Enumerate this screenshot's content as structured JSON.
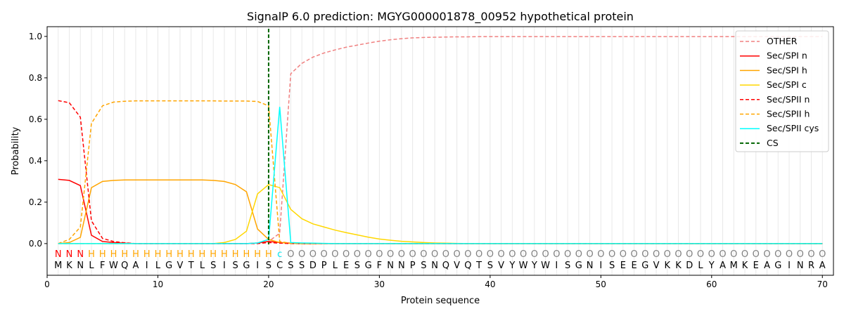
{
  "chart_data": {
    "type": "line",
    "title": "SignalP 6.0 prediction: MGYG000001878_00952 hypothetical protein",
    "xlabel": "Protein sequence",
    "ylabel": "Probability",
    "xlim": [
      0,
      71
    ],
    "ylim": [
      -0.153,
      1.047
    ],
    "xticks": [
      0,
      10,
      20,
      30,
      40,
      50,
      60,
      70
    ],
    "yticks": [
      0.0,
      0.2,
      0.4,
      0.6,
      0.8,
      1.0
    ],
    "grid": "vertical at each residue",
    "legend_position": "top-right",
    "sequence": [
      "M",
      "K",
      "N",
      "L",
      "F",
      "W",
      "Q",
      "A",
      "I",
      "L",
      "G",
      "V",
      "T",
      "L",
      "S",
      "I",
      "S",
      "G",
      "I",
      "S",
      "C",
      "S",
      "S",
      "D",
      "P",
      "L",
      "E",
      "S",
      "G",
      "F",
      "N",
      "N",
      "P",
      "S",
      "N",
      "Q",
      "V",
      "Q",
      "T",
      "S",
      "V",
      "Y",
      "W",
      "Y",
      "W",
      "I",
      "S",
      "G",
      "N",
      "I",
      "S",
      "E",
      "E",
      "G",
      "V",
      "K",
      "K",
      "D",
      "L",
      "Y",
      "A",
      "M",
      "K",
      "E",
      "A",
      "G",
      "I",
      "N",
      "R",
      "A"
    ],
    "labels": [
      "N",
      "N",
      "N",
      "H",
      "H",
      "H",
      "H",
      "H",
      "H",
      "H",
      "H",
      "H",
      "H",
      "H",
      "H",
      "H",
      "H",
      "H",
      "H",
      "H",
      "c",
      "O",
      "O",
      "O",
      "O",
      "O",
      "O",
      "O",
      "O",
      "O",
      "O",
      "O",
      "O",
      "O",
      "O",
      "O",
      "O",
      "O",
      "O",
      "O",
      "O",
      "O",
      "O",
      "O",
      "O",
      "O",
      "O",
      "O",
      "O",
      "O",
      "O",
      "O",
      "O",
      "O",
      "O",
      "O",
      "O",
      "O",
      "O",
      "O",
      "O",
      "O",
      "O",
      "O",
      "O",
      "O",
      "O",
      "O",
      "O",
      "O"
    ],
    "label_colors": {
      "N": "#ff0000",
      "H": "#ffa500",
      "c": "#00e5ee",
      "O": "#808080"
    },
    "cleavage_site": {
      "name": "CS",
      "x": 20,
      "color": "#006400"
    },
    "series": [
      {
        "name": "OTHER",
        "color": "#f08080",
        "dash": true,
        "values": [
          0,
          0,
          0,
          0,
          0,
          0,
          0,
          0,
          0,
          0,
          0,
          0,
          0,
          0,
          0,
          0,
          0,
          0,
          0.002,
          0.01,
          0.05,
          0.82,
          0.87,
          0.9,
          0.92,
          0.935,
          0.948,
          0.958,
          0.968,
          0.977,
          0.984,
          0.989,
          0.993,
          0.995,
          0.996,
          0.997,
          0.998,
          0.998,
          0.999,
          0.999,
          0.999,
          0.999,
          0.999,
          0.999,
          0.999,
          0.999,
          0.999,
          0.999,
          0.999,
          0.999,
          0.999,
          0.999,
          0.999,
          0.999,
          0.999,
          0.999,
          0.999,
          0.999,
          0.999,
          0.999,
          0.999,
          0.999,
          0.999,
          0.999,
          0.999,
          0.999,
          0.999,
          0.999,
          0.999,
          0.999
        ]
      },
      {
        "name": "Sec/SPI n",
        "color": "#ff0000",
        "dash": false,
        "values": [
          0.31,
          0.305,
          0.28,
          0.04,
          0.01,
          0.005,
          0.002,
          0,
          0,
          0,
          0,
          0,
          0,
          0,
          0,
          0,
          0,
          0,
          0.003,
          0.01,
          0.005,
          0.002,
          0,
          0,
          0,
          0,
          0,
          0,
          0,
          0,
          0,
          0,
          0,
          0,
          0,
          0,
          0,
          0,
          0,
          0,
          0,
          0,
          0,
          0,
          0,
          0,
          0,
          0,
          0,
          0,
          0,
          0,
          0,
          0,
          0,
          0,
          0,
          0,
          0,
          0,
          0,
          0,
          0,
          0,
          0,
          0,
          0,
          0,
          0,
          0
        ]
      },
      {
        "name": "Sec/SPI h",
        "color": "#ffa500",
        "dash": false,
        "values": [
          0,
          0.005,
          0.03,
          0.27,
          0.3,
          0.305,
          0.307,
          0.307,
          0.307,
          0.307,
          0.307,
          0.307,
          0.307,
          0.307,
          0.305,
          0.3,
          0.285,
          0.25,
          0.07,
          0.02,
          0.005,
          0.001,
          0,
          0,
          0,
          0,
          0,
          0,
          0,
          0,
          0,
          0,
          0,
          0,
          0,
          0,
          0,
          0,
          0,
          0,
          0,
          0,
          0,
          0,
          0,
          0,
          0,
          0,
          0,
          0,
          0,
          0,
          0,
          0,
          0,
          0,
          0,
          0,
          0,
          0,
          0,
          0,
          0,
          0,
          0,
          0,
          0,
          0,
          0,
          0
        ]
      },
      {
        "name": "Sec/SPI c",
        "color": "#ffd700",
        "dash": false,
        "values": [
          0,
          0,
          0,
          0,
          0,
          0,
          0,
          0,
          0,
          0,
          0,
          0,
          0,
          0,
          0,
          0.005,
          0.02,
          0.06,
          0.24,
          0.285,
          0.27,
          0.165,
          0.12,
          0.095,
          0.08,
          0.065,
          0.053,
          0.042,
          0.031,
          0.022,
          0.016,
          0.011,
          0.008,
          0.005,
          0.003,
          0.002,
          0.001,
          0,
          0,
          0,
          0,
          0,
          0,
          0,
          0,
          0,
          0,
          0,
          0,
          0,
          0,
          0,
          0,
          0,
          0,
          0,
          0,
          0,
          0,
          0,
          0,
          0,
          0,
          0,
          0,
          0,
          0,
          0,
          0,
          0
        ]
      },
      {
        "name": "Sec/SPII n",
        "color": "#ff0000",
        "dash": true,
        "values": [
          0.69,
          0.68,
          0.61,
          0.11,
          0.025,
          0.01,
          0.004,
          0,
          0,
          0,
          0,
          0,
          0,
          0,
          0,
          0,
          0,
          0,
          0,
          0.005,
          0.002,
          0,
          0,
          0,
          0,
          0,
          0,
          0,
          0,
          0,
          0,
          0,
          0,
          0,
          0,
          0,
          0,
          0,
          0,
          0,
          0,
          0,
          0,
          0,
          0,
          0,
          0,
          0,
          0,
          0,
          0,
          0,
          0,
          0,
          0,
          0,
          0,
          0,
          0,
          0,
          0,
          0,
          0,
          0,
          0,
          0,
          0,
          0,
          0,
          0
        ]
      },
      {
        "name": "Sec/SPII h",
        "color": "#ffa500",
        "dash": true,
        "values": [
          0,
          0.02,
          0.08,
          0.58,
          0.665,
          0.683,
          0.687,
          0.689,
          0.689,
          0.689,
          0.689,
          0.689,
          0.689,
          0.689,
          0.689,
          0.688,
          0.688,
          0.688,
          0.686,
          0.665,
          0.01,
          0.001,
          0,
          0,
          0,
          0,
          0,
          0,
          0,
          0,
          0,
          0,
          0,
          0,
          0,
          0,
          0,
          0,
          0,
          0,
          0,
          0,
          0,
          0,
          0,
          0,
          0,
          0,
          0,
          0,
          0,
          0,
          0,
          0,
          0,
          0,
          0,
          0,
          0,
          0,
          0,
          0,
          0,
          0,
          0,
          0,
          0,
          0,
          0,
          0
        ]
      },
      {
        "name": "Sec/SPII cys",
        "color": "#00ffff",
        "dash": false,
        "values": [
          0,
          0,
          0,
          0,
          0,
          0,
          0,
          0,
          0,
          0,
          0,
          0,
          0,
          0,
          0,
          0,
          0,
          0,
          0.003,
          0.02,
          0.66,
          0.005,
          0.003,
          0.002,
          0.001,
          0,
          0,
          0,
          0,
          0,
          0,
          0,
          0,
          0,
          0,
          0,
          0,
          0,
          0,
          0,
          0,
          0,
          0,
          0,
          0,
          0,
          0,
          0,
          0,
          0,
          0,
          0,
          0,
          0,
          0,
          0,
          0,
          0,
          0,
          0,
          0,
          0,
          0,
          0,
          0,
          0,
          0,
          0,
          0,
          0
        ]
      }
    ]
  }
}
